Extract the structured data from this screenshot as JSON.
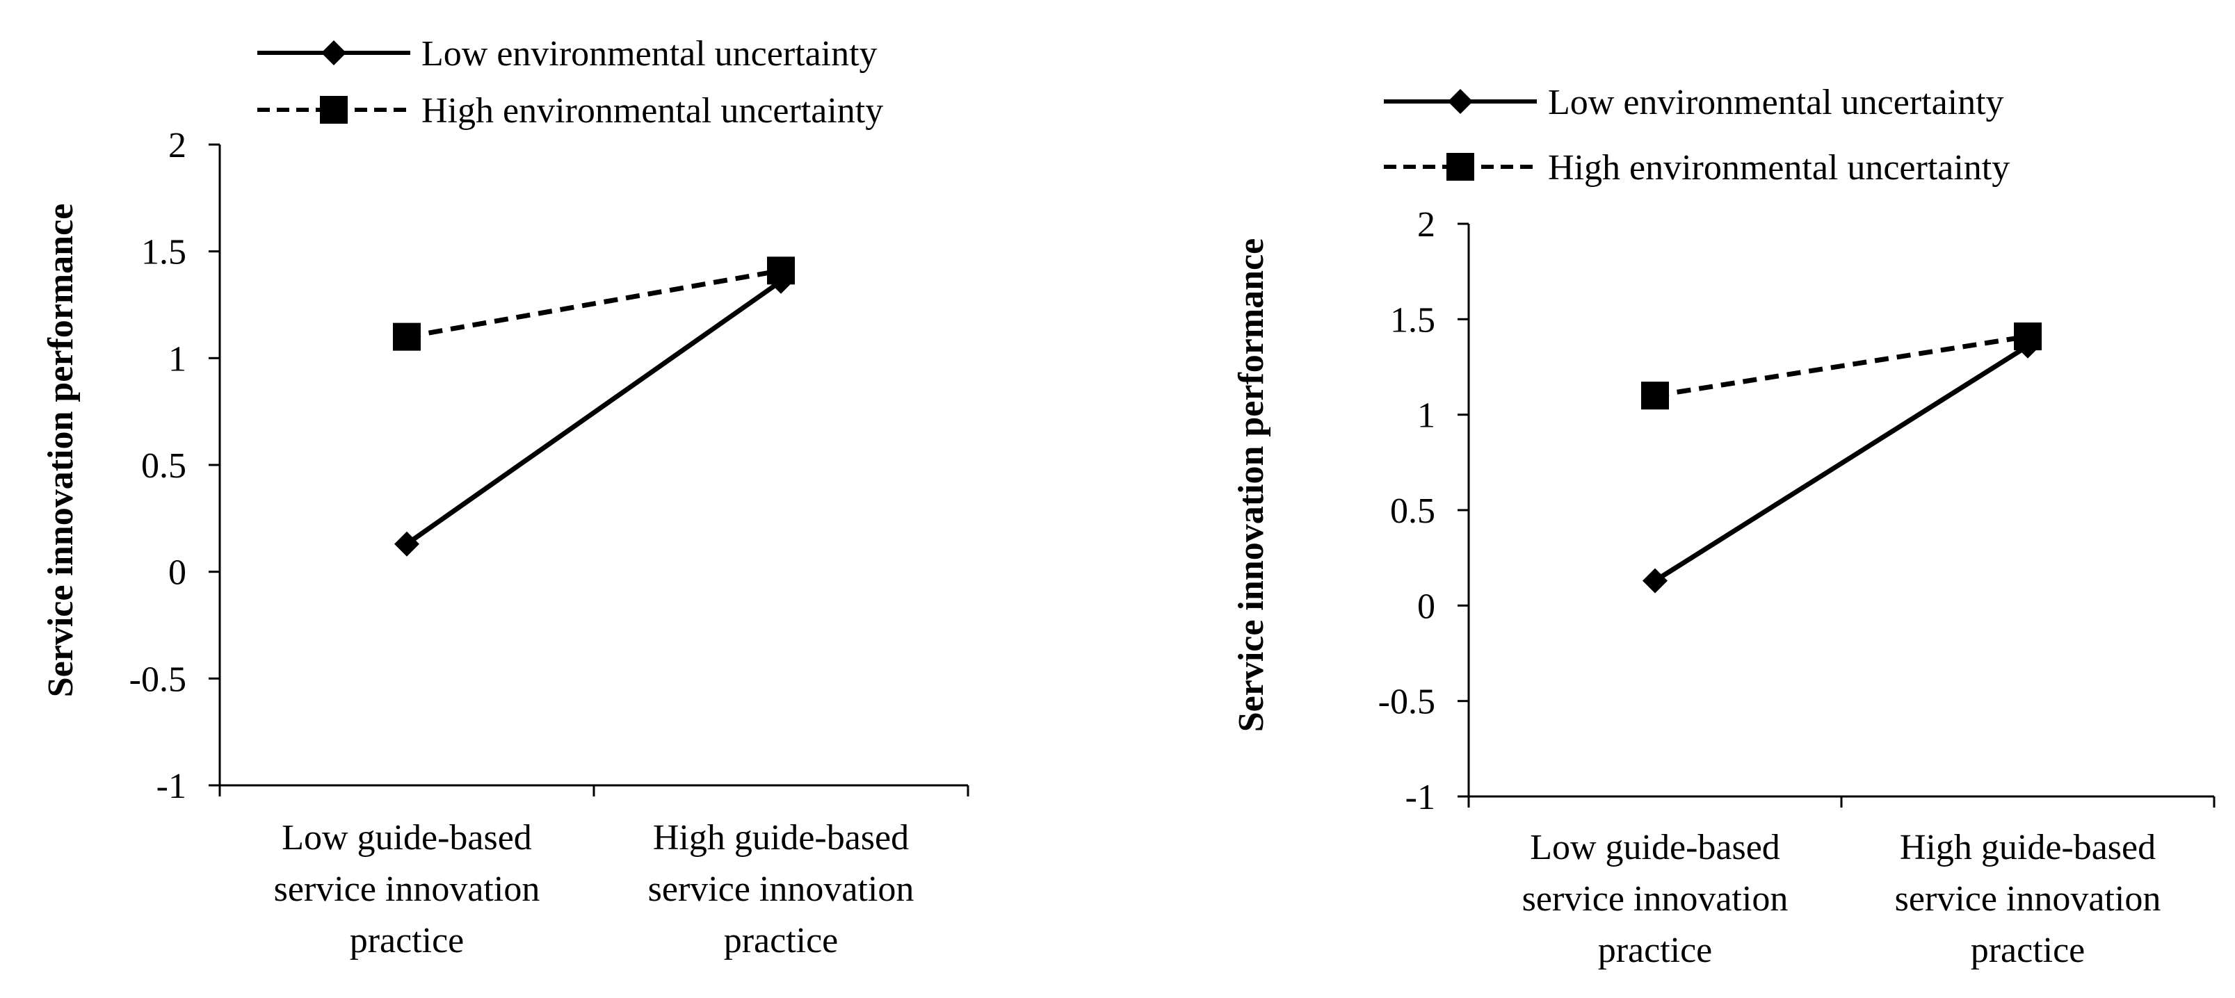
{
  "chart_data": [
    {
      "type": "line",
      "title": "",
      "ylabel": "Service innovation performance",
      "xlabel": "",
      "ylim": [
        -1,
        2
      ],
      "yticks": [
        "2",
        "1.5",
        "1",
        "0.5",
        "0",
        "-0.5",
        "-1"
      ],
      "categories": [
        [
          "Low guide-based",
          "service innovation",
          "practice"
        ],
        [
          "High guide-based",
          "service innovation",
          "practice"
        ]
      ],
      "legend_position": "top",
      "series": [
        {
          "name": "Low environmental uncertainty",
          "marker": "diamond",
          "line": "solid",
          "values": [
            0.13,
            1.36
          ]
        },
        {
          "name": "High environmental uncertainty",
          "marker": "square",
          "line": "dashed",
          "values": [
            1.1,
            1.41
          ]
        }
      ]
    },
    {
      "type": "line",
      "title": "",
      "ylabel": "Service innovation  performance",
      "xlabel": "",
      "ylim": [
        -1,
        2
      ],
      "yticks": [
        "2",
        "1.5",
        "1",
        "0.5",
        "0",
        "-0.5",
        "-1"
      ],
      "categories": [
        [
          "Low guide-based",
          "service innovation",
          "practice"
        ],
        [
          "High guide-based",
          "service innovation",
          "practice"
        ]
      ],
      "legend_position": "top",
      "series": [
        {
          "name": "Low environmental uncertainty",
          "marker": "diamond",
          "line": "solid",
          "values": [
            0.13,
            1.36
          ]
        },
        {
          "name": "High environmental uncertainty",
          "marker": "square",
          "line": "dashed",
          "values": [
            1.1,
            1.41
          ]
        }
      ]
    }
  ]
}
